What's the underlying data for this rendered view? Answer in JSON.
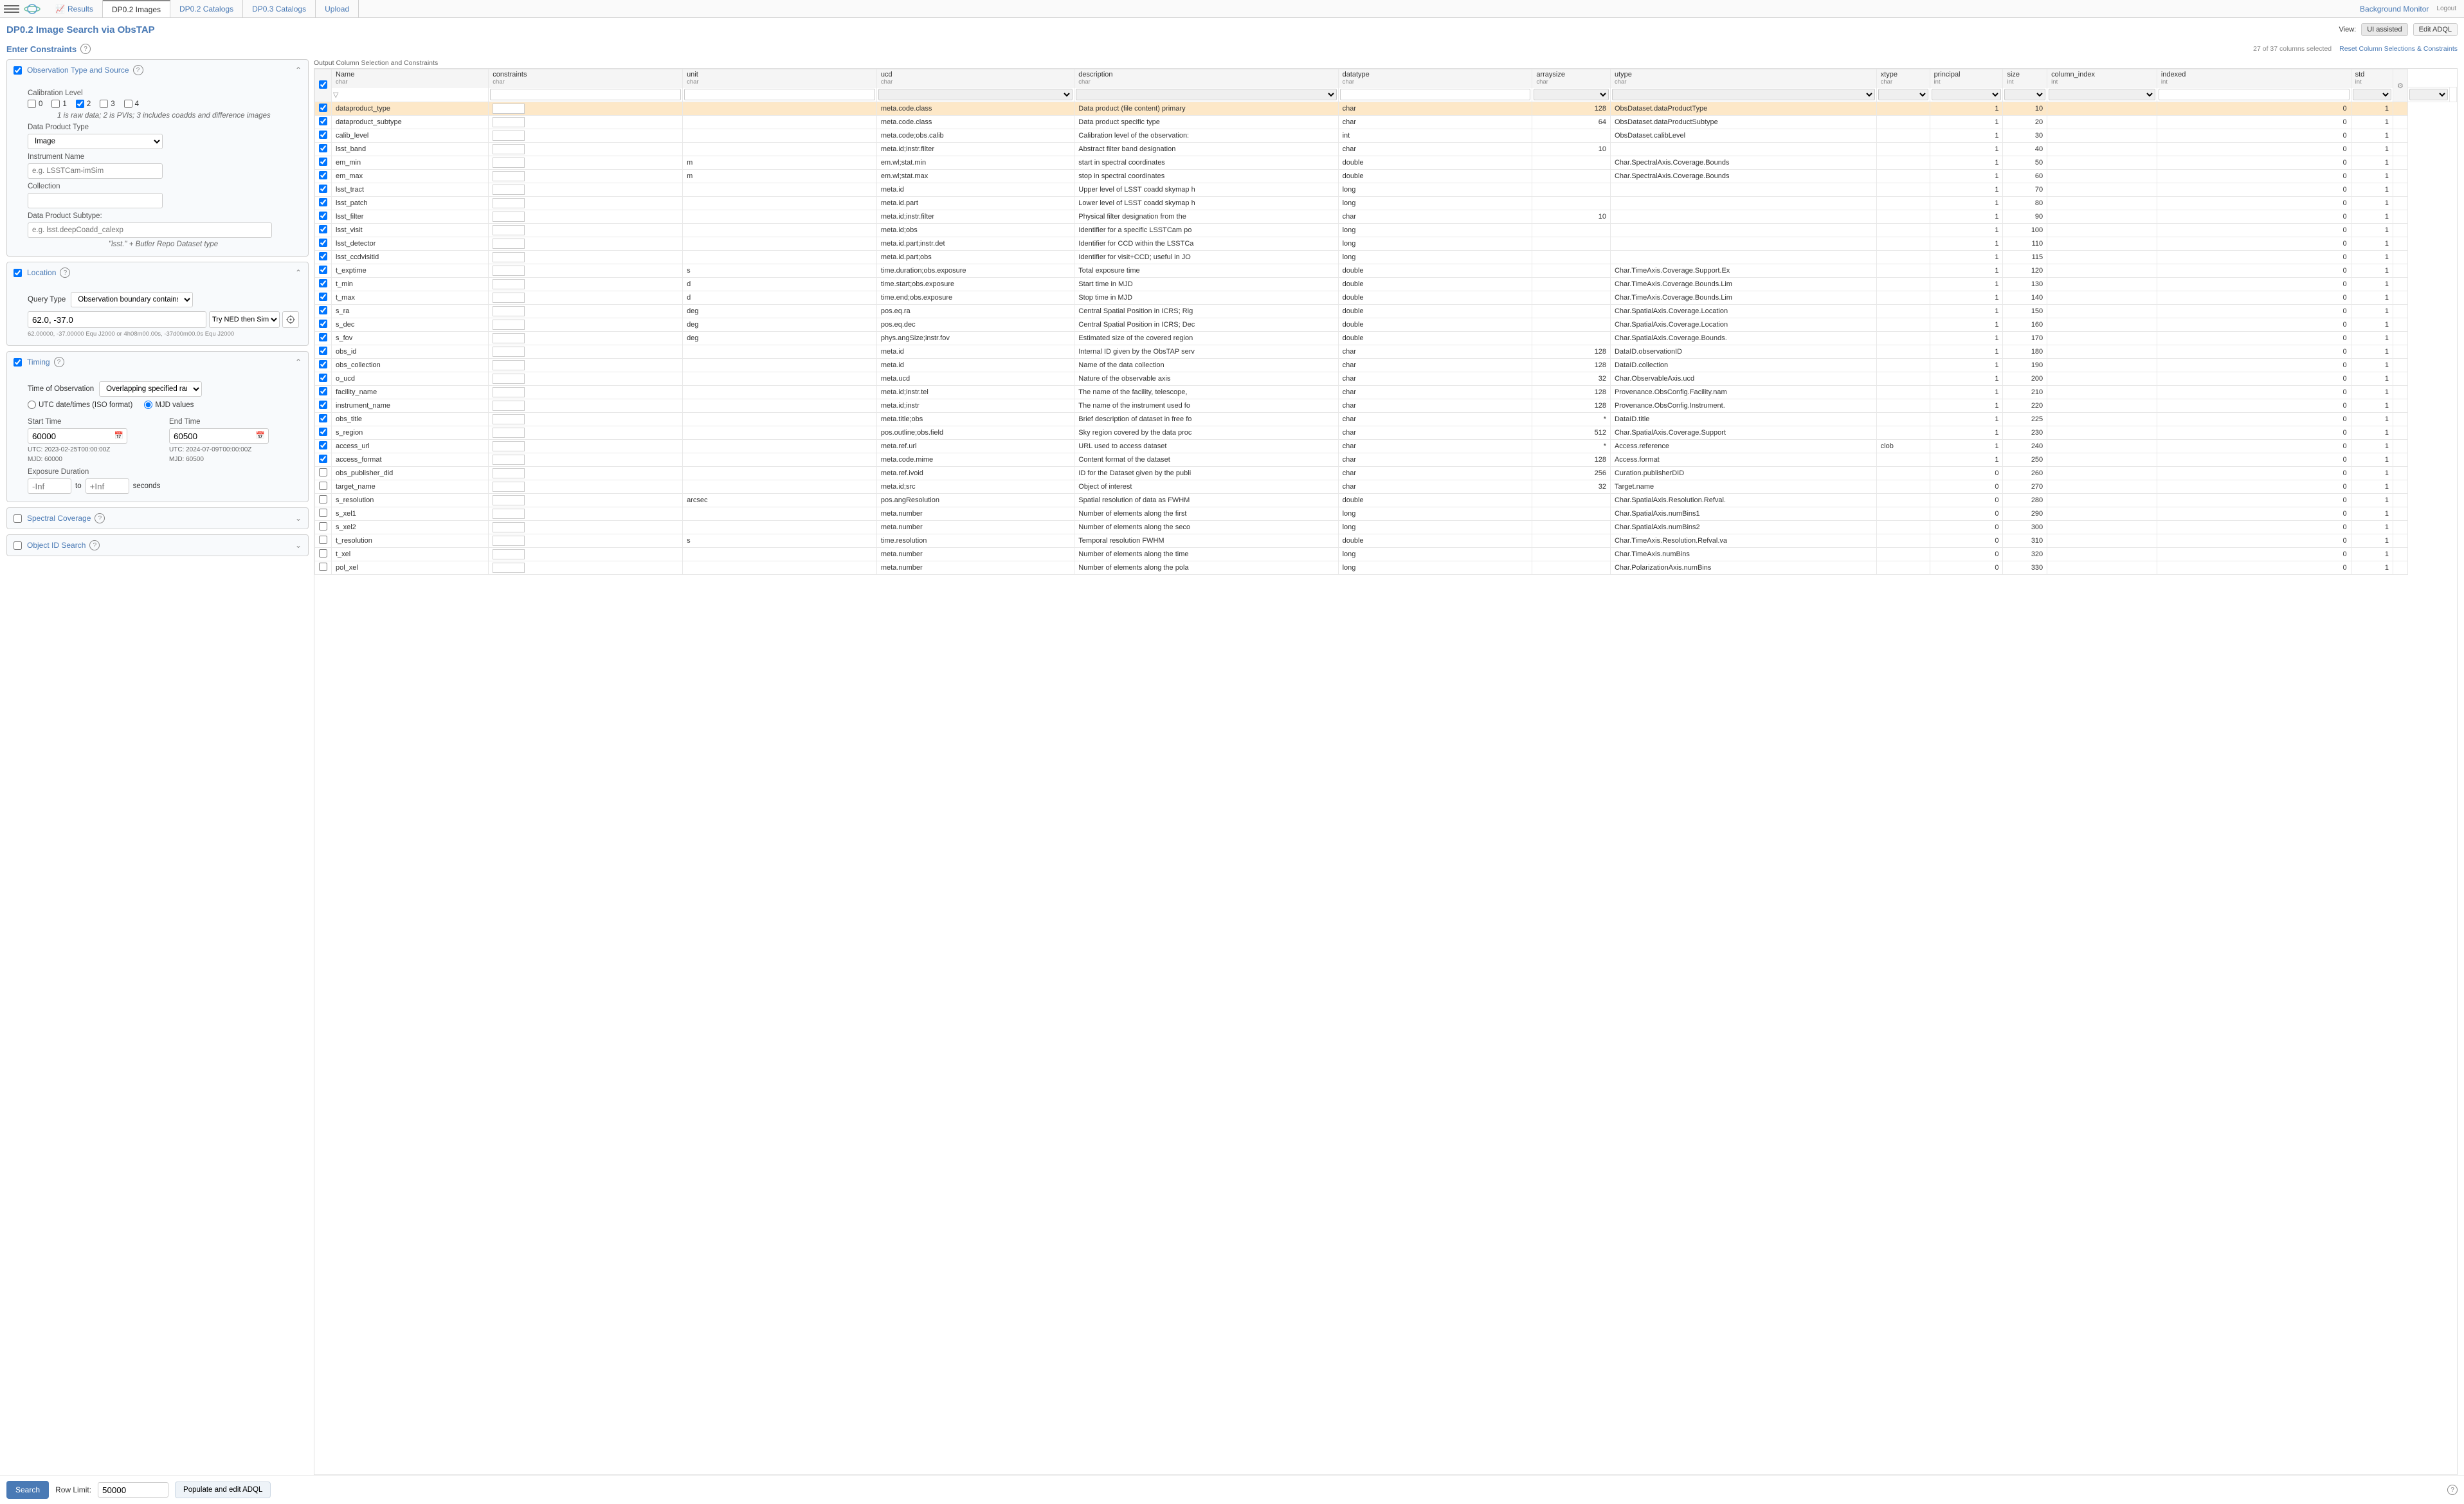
{
  "topbar": {
    "tabs": [
      {
        "label": "Results",
        "active": false,
        "icon": true
      },
      {
        "label": "DP0.2 Images",
        "active": true,
        "icon": false
      },
      {
        "label": "DP0.2 Catalogs",
        "active": false,
        "icon": false
      },
      {
        "label": "DP0.3 Catalogs",
        "active": false,
        "icon": false
      },
      {
        "label": "Upload",
        "active": false,
        "icon": false
      }
    ],
    "bg_monitor": "Background Monitor",
    "logout": "Logout"
  },
  "title": "DP0.2 Image Search via ObsTAP",
  "view": {
    "label": "View:",
    "ui_assisted": "UI assisted",
    "edit_adql": "Edit ADQL"
  },
  "enter_constraints": "Enter Constraints",
  "columns_info": {
    "count": "27 of 37 columns selected",
    "reset": "Reset Column Selections & Constraints"
  },
  "obs_type": {
    "title": "Observation Type and Source",
    "checked": true,
    "cal_level_label": "Calibration Level",
    "cal_levels": [
      {
        "v": "0",
        "checked": false
      },
      {
        "v": "1",
        "checked": false
      },
      {
        "v": "2",
        "checked": true
      },
      {
        "v": "3",
        "checked": false
      },
      {
        "v": "4",
        "checked": false
      }
    ],
    "cal_hint": "1 is raw data; 2 is PVIs; 3 includes coadds and difference images",
    "dpt_label": "Data Product Type",
    "dpt_value": "Image",
    "inst_label": "Instrument Name",
    "inst_placeholder": "e.g. LSSTCam-imSim",
    "coll_label": "Collection",
    "subtype_label": "Data Product Subtype:",
    "subtype_placeholder": "e.g. lsst.deepCoadd_calexp",
    "subtype_hint": "\"lsst.\" + Butler Repo Dataset type"
  },
  "location": {
    "title": "Location",
    "checked": true,
    "qt_label": "Query Type",
    "qt_value": "Observation boundary contains point",
    "coords_value": "62.0, -37.0",
    "ned": "Try NED then Simbad",
    "coords_hint": "62.00000, -37.00000  Equ J2000   or   4h08m00.00s, -37d00m00.0s  Equ J2000"
  },
  "timing": {
    "title": "Timing",
    "checked": true,
    "too_label": "Time of Observation",
    "too_value": "Overlapping specified range",
    "utc_opt": "UTC date/times (ISO format)",
    "mjd_opt": "MJD values",
    "start_label": "Start Time",
    "start_value": "60000",
    "start_utc": "UTC: 2023-02-25T00:00:00Z",
    "start_mjd": "MJD: 60000",
    "end_label": "End Time",
    "end_value": "60500",
    "end_utc": "UTC: 2024-07-09T00:00:00Z",
    "end_mjd": "MJD: 60500",
    "dur_label": "Exposure Duration",
    "dur_from_ph": "-Inf",
    "dur_to": "to",
    "dur_to_ph": "+Inf",
    "seconds": "seconds"
  },
  "spectral": {
    "title": "Spectral Coverage",
    "checked": false
  },
  "objid": {
    "title": "Object ID Search",
    "checked": false
  },
  "output_title": "Output Column Selection and Constraints",
  "headers": [
    {
      "n": "Name",
      "s": "char"
    },
    {
      "n": "constraints",
      "s": "char"
    },
    {
      "n": "unit",
      "s": "char"
    },
    {
      "n": "ucd",
      "s": "char"
    },
    {
      "n": "description",
      "s": "char"
    },
    {
      "n": "datatype",
      "s": "char"
    },
    {
      "n": "arraysize",
      "s": "char"
    },
    {
      "n": "utype",
      "s": "char"
    },
    {
      "n": "xtype",
      "s": "char"
    },
    {
      "n": "principal",
      "s": "int"
    },
    {
      "n": "size",
      "s": "int"
    },
    {
      "n": "column_index",
      "s": "int"
    },
    {
      "n": "indexed",
      "s": "int"
    },
    {
      "n": "std",
      "s": "int"
    }
  ],
  "rows": [
    {
      "c": true,
      "sel": true,
      "name": "dataproduct_type",
      "unit": "",
      "ucd": "meta.code.class",
      "desc": "Data product (file content) primary",
      "dt": "char",
      "as": "128",
      "ut": "ObsDataset.dataProductType",
      "xt": "",
      "p": 1,
      "sz": 10,
      "ci": "",
      "ix": 0,
      "std": 1
    },
    {
      "c": true,
      "name": "dataproduct_subtype",
      "unit": "",
      "ucd": "meta.code.class",
      "desc": "Data product specific type",
      "dt": "char",
      "as": "64",
      "ut": "ObsDataset.dataProductSubtype",
      "xt": "",
      "p": 1,
      "sz": 20,
      "ci": "",
      "ix": 0,
      "std": 1
    },
    {
      "c": true,
      "name": "calib_level",
      "unit": "",
      "ucd": "meta.code;obs.calib",
      "desc": "Calibration level of the observation:",
      "dt": "int",
      "as": "",
      "ut": "ObsDataset.calibLevel",
      "xt": "",
      "p": 1,
      "sz": 30,
      "ci": "",
      "ix": 0,
      "std": 1
    },
    {
      "c": true,
      "name": "lsst_band",
      "unit": "",
      "ucd": "meta.id;instr.filter",
      "desc": "Abstract filter band designation",
      "dt": "char",
      "as": "10",
      "ut": "",
      "xt": "",
      "p": 1,
      "sz": 40,
      "ci": "",
      "ix": 0,
      "std": 1
    },
    {
      "c": true,
      "name": "em_min",
      "unit": "m",
      "ucd": "em.wl;stat.min",
      "desc": "start in spectral coordinates",
      "dt": "double",
      "as": "",
      "ut": "Char.SpectralAxis.Coverage.Bounds",
      "xt": "",
      "p": 1,
      "sz": 50,
      "ci": "",
      "ix": 0,
      "std": 1
    },
    {
      "c": true,
      "name": "em_max",
      "unit": "m",
      "ucd": "em.wl;stat.max",
      "desc": "stop in spectral coordinates",
      "dt": "double",
      "as": "",
      "ut": "Char.SpectralAxis.Coverage.Bounds",
      "xt": "",
      "p": 1,
      "sz": 60,
      "ci": "",
      "ix": 0,
      "std": 1
    },
    {
      "c": true,
      "name": "lsst_tract",
      "unit": "",
      "ucd": "meta.id",
      "desc": "Upper level of LSST coadd skymap h",
      "dt": "long",
      "as": "",
      "ut": "",
      "xt": "",
      "p": 1,
      "sz": 70,
      "ci": "",
      "ix": 0,
      "std": 1
    },
    {
      "c": true,
      "name": "lsst_patch",
      "unit": "",
      "ucd": "meta.id.part",
      "desc": "Lower level of LSST coadd skymap h",
      "dt": "long",
      "as": "",
      "ut": "",
      "xt": "",
      "p": 1,
      "sz": 80,
      "ci": "",
      "ix": 0,
      "std": 1
    },
    {
      "c": true,
      "name": "lsst_filter",
      "unit": "",
      "ucd": "meta.id;instr.filter",
      "desc": "Physical filter designation from the",
      "dt": "char",
      "as": "10",
      "ut": "",
      "xt": "",
      "p": 1,
      "sz": 90,
      "ci": "",
      "ix": 0,
      "std": 1
    },
    {
      "c": true,
      "name": "lsst_visit",
      "unit": "",
      "ucd": "meta.id;obs",
      "desc": "Identifier for a specific LSSTCam po",
      "dt": "long",
      "as": "",
      "ut": "",
      "xt": "",
      "p": 1,
      "sz": 100,
      "ci": "",
      "ix": 0,
      "std": 1
    },
    {
      "c": true,
      "name": "lsst_detector",
      "unit": "",
      "ucd": "meta.id.part;instr.det",
      "desc": "Identifier for CCD within the LSSTCa",
      "dt": "long",
      "as": "",
      "ut": "",
      "xt": "",
      "p": 1,
      "sz": 110,
      "ci": "",
      "ix": 0,
      "std": 1
    },
    {
      "c": true,
      "name": "lsst_ccdvisitid",
      "unit": "",
      "ucd": "meta.id.part;obs",
      "desc": "Identifier for visit+CCD; useful in JO",
      "dt": "long",
      "as": "",
      "ut": "",
      "xt": "",
      "p": 1,
      "sz": 115,
      "ci": "",
      "ix": 0,
      "std": 1
    },
    {
      "c": true,
      "name": "t_exptime",
      "unit": "s",
      "ucd": "time.duration;obs.exposure",
      "desc": "Total exposure time",
      "dt": "double",
      "as": "",
      "ut": "Char.TimeAxis.Coverage.Support.Ex",
      "xt": "",
      "p": 1,
      "sz": 120,
      "ci": "",
      "ix": 0,
      "std": 1
    },
    {
      "c": true,
      "name": "t_min",
      "unit": "d",
      "ucd": "time.start;obs.exposure",
      "desc": "Start time in MJD",
      "dt": "double",
      "as": "",
      "ut": "Char.TimeAxis.Coverage.Bounds.Lim",
      "xt": "",
      "p": 1,
      "sz": 130,
      "ci": "",
      "ix": 0,
      "std": 1
    },
    {
      "c": true,
      "name": "t_max",
      "unit": "d",
      "ucd": "time.end;obs.exposure",
      "desc": "Stop time in MJD",
      "dt": "double",
      "as": "",
      "ut": "Char.TimeAxis.Coverage.Bounds.Lim",
      "xt": "",
      "p": 1,
      "sz": 140,
      "ci": "",
      "ix": 0,
      "std": 1
    },
    {
      "c": true,
      "name": "s_ra",
      "unit": "deg",
      "ucd": "pos.eq.ra",
      "desc": "Central Spatial Position in ICRS; Rig",
      "dt": "double",
      "as": "",
      "ut": "Char.SpatialAxis.Coverage.Location",
      "xt": "",
      "p": 1,
      "sz": 150,
      "ci": "",
      "ix": 0,
      "std": 1
    },
    {
      "c": true,
      "name": "s_dec",
      "unit": "deg",
      "ucd": "pos.eq.dec",
      "desc": "Central Spatial Position in ICRS; Dec",
      "dt": "double",
      "as": "",
      "ut": "Char.SpatialAxis.Coverage.Location",
      "xt": "",
      "p": 1,
      "sz": 160,
      "ci": "",
      "ix": 0,
      "std": 1
    },
    {
      "c": true,
      "name": "s_fov",
      "unit": "deg",
      "ucd": "phys.angSize;instr.fov",
      "desc": "Estimated size of the covered region",
      "dt": "double",
      "as": "",
      "ut": "Char.SpatialAxis.Coverage.Bounds.",
      "xt": "",
      "p": 1,
      "sz": 170,
      "ci": "",
      "ix": 0,
      "std": 1
    },
    {
      "c": true,
      "name": "obs_id",
      "unit": "",
      "ucd": "meta.id",
      "desc": "Internal ID given by the ObsTAP serv",
      "dt": "char",
      "as": "128",
      "ut": "DataID.observationID",
      "xt": "",
      "p": 1,
      "sz": 180,
      "ci": "",
      "ix": 0,
      "std": 1
    },
    {
      "c": true,
      "name": "obs_collection",
      "unit": "",
      "ucd": "meta.id",
      "desc": "Name of the data collection",
      "dt": "char",
      "as": "128",
      "ut": "DataID.collection",
      "xt": "",
      "p": 1,
      "sz": 190,
      "ci": "",
      "ix": 0,
      "std": 1
    },
    {
      "c": true,
      "name": "o_ucd",
      "unit": "",
      "ucd": "meta.ucd",
      "desc": "Nature of the observable axis",
      "dt": "char",
      "as": "32",
      "ut": "Char.ObservableAxis.ucd",
      "xt": "",
      "p": 1,
      "sz": 200,
      "ci": "",
      "ix": 0,
      "std": 1
    },
    {
      "c": true,
      "name": "facility_name",
      "unit": "",
      "ucd": "meta.id;instr.tel",
      "desc": "The name of the facility, telescope, ",
      "dt": "char",
      "as": "128",
      "ut": "Provenance.ObsConfig.Facility.nam",
      "xt": "",
      "p": 1,
      "sz": 210,
      "ci": "",
      "ix": 0,
      "std": 1
    },
    {
      "c": true,
      "name": "instrument_name",
      "unit": "",
      "ucd": "meta.id;instr",
      "desc": "The name of the instrument used fo",
      "dt": "char",
      "as": "128",
      "ut": "Provenance.ObsConfig.Instrument.",
      "xt": "",
      "p": 1,
      "sz": 220,
      "ci": "",
      "ix": 0,
      "std": 1
    },
    {
      "c": true,
      "name": "obs_title",
      "unit": "",
      "ucd": "meta.title;obs",
      "desc": "Brief description of dataset in free fo",
      "dt": "char",
      "as": "*",
      "ut": "DataID.title",
      "xt": "",
      "p": 1,
      "sz": 225,
      "ci": "",
      "ix": 0,
      "std": 1
    },
    {
      "c": true,
      "name": "s_region",
      "unit": "",
      "ucd": "pos.outline;obs.field",
      "desc": "Sky region covered by the data proc",
      "dt": "char",
      "as": "512",
      "ut": "Char.SpatialAxis.Coverage.Support",
      "xt": "",
      "p": 1,
      "sz": 230,
      "ci": "",
      "ix": 0,
      "std": 1
    },
    {
      "c": true,
      "name": "access_url",
      "unit": "",
      "ucd": "meta.ref.url",
      "desc": "URL used to access dataset",
      "dt": "char",
      "as": "*",
      "ut": "Access.reference",
      "xt": "clob",
      "p": 1,
      "sz": 240,
      "ci": "",
      "ix": 0,
      "std": 1
    },
    {
      "c": true,
      "name": "access_format",
      "unit": "",
      "ucd": "meta.code.mime",
      "desc": "Content format of the dataset",
      "dt": "char",
      "as": "128",
      "ut": "Access.format",
      "xt": "",
      "p": 1,
      "sz": 250,
      "ci": "",
      "ix": 0,
      "std": 1
    },
    {
      "c": false,
      "name": "obs_publisher_did",
      "unit": "",
      "ucd": "meta.ref.ivoid",
      "desc": "ID for the Dataset given by the publi",
      "dt": "char",
      "as": "256",
      "ut": "Curation.publisherDID",
      "xt": "",
      "p": 0,
      "sz": 260,
      "ci": "",
      "ix": 0,
      "std": 1
    },
    {
      "c": false,
      "name": "target_name",
      "unit": "",
      "ucd": "meta.id;src",
      "desc": "Object of interest",
      "dt": "char",
      "as": "32",
      "ut": "Target.name",
      "xt": "",
      "p": 0,
      "sz": 270,
      "ci": "",
      "ix": 0,
      "std": 1
    },
    {
      "c": false,
      "name": "s_resolution",
      "unit": "arcsec",
      "ucd": "pos.angResolution",
      "desc": "Spatial resolution of data as FWHM ",
      "dt": "double",
      "as": "",
      "ut": "Char.SpatialAxis.Resolution.Refval.",
      "xt": "",
      "p": 0,
      "sz": 280,
      "ci": "",
      "ix": 0,
      "std": 1
    },
    {
      "c": false,
      "name": "s_xel1",
      "unit": "",
      "ucd": "meta.number",
      "desc": "Number of elements along the first ",
      "dt": "long",
      "as": "",
      "ut": "Char.SpatialAxis.numBins1",
      "xt": "",
      "p": 0,
      "sz": 290,
      "ci": "",
      "ix": 0,
      "std": 1
    },
    {
      "c": false,
      "name": "s_xel2",
      "unit": "",
      "ucd": "meta.number",
      "desc": "Number of elements along the seco",
      "dt": "long",
      "as": "",
      "ut": "Char.SpatialAxis.numBins2",
      "xt": "",
      "p": 0,
      "sz": 300,
      "ci": "",
      "ix": 0,
      "std": 1
    },
    {
      "c": false,
      "name": "t_resolution",
      "unit": "s",
      "ucd": "time.resolution",
      "desc": "Temporal resolution FWHM",
      "dt": "double",
      "as": "",
      "ut": "Char.TimeAxis.Resolution.Refval.va",
      "xt": "",
      "p": 0,
      "sz": 310,
      "ci": "",
      "ix": 0,
      "std": 1
    },
    {
      "c": false,
      "name": "t_xel",
      "unit": "",
      "ucd": "meta.number",
      "desc": "Number of elements along the time",
      "dt": "long",
      "as": "",
      "ut": "Char.TimeAxis.numBins",
      "xt": "",
      "p": 0,
      "sz": 320,
      "ci": "",
      "ix": 0,
      "std": 1
    },
    {
      "c": false,
      "name": "pol_xel",
      "unit": "",
      "ucd": "meta.number",
      "desc": "Number of elements along the pola",
      "dt": "long",
      "as": "",
      "ut": "Char.PolarizationAxis.numBins",
      "xt": "",
      "p": 0,
      "sz": 330,
      "ci": "",
      "ix": 0,
      "std": 1
    }
  ],
  "footer": {
    "search": "Search",
    "row_limit_label": "Row Limit:",
    "row_limit_value": "50000",
    "populate": "Populate and edit ADQL"
  }
}
